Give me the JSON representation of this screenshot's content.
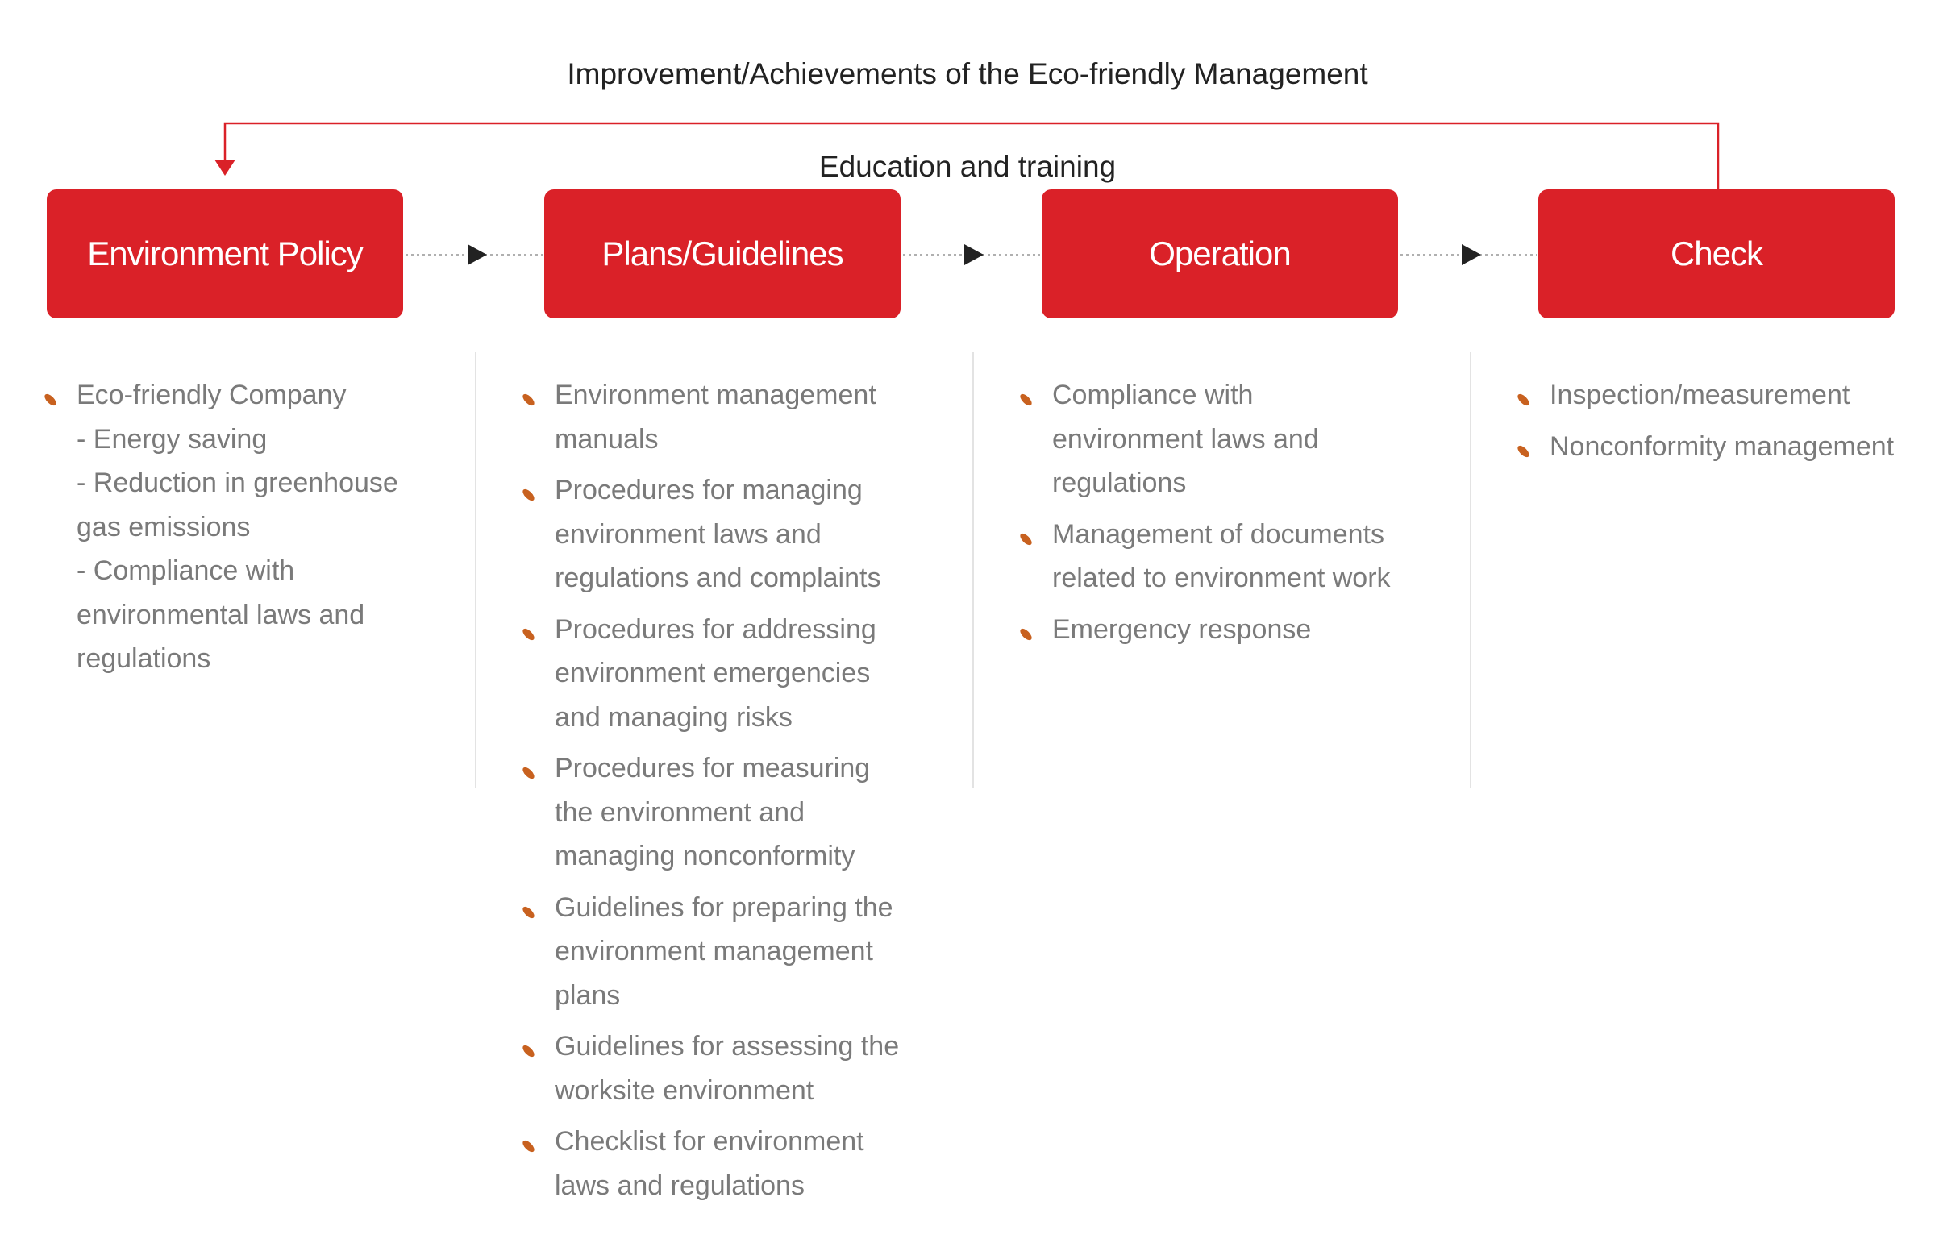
{
  "diagram": {
    "title": "Improvement/Achievements of the Eco-friendly Management",
    "subtitle": "Education and training",
    "colors": {
      "stage": "#da2128",
      "bullet": "#c8611f",
      "text": "#7a7a7a",
      "feedback_line": "#da2128",
      "arrow": "#222222"
    },
    "stages": [
      {
        "label": "Environment Policy"
      },
      {
        "label": "Plans/Guidelines"
      },
      {
        "label": "Operation"
      },
      {
        "label": "Check"
      }
    ],
    "columns": [
      {
        "items": [
          {
            "text": "Eco-friendly Company",
            "sub": [
              "- Energy saving",
              "- Reduction in greenhouse gas emissions",
              "- Compliance with environmental laws and regulations"
            ]
          }
        ]
      },
      {
        "items": [
          {
            "text": "Environment management manuals"
          },
          {
            "text": "Procedures for managing environment laws and regulations and complaints"
          },
          {
            "text": "Procedures for addressing environment emergencies and managing risks"
          },
          {
            "text": "Procedures for measuring the environment and managing nonconformity"
          },
          {
            "text": "Guidelines for preparing the environment management plans"
          },
          {
            "text": "Guidelines for assessing the worksite environment"
          },
          {
            "text": "Checklist for environment laws and regulations"
          }
        ]
      },
      {
        "items": [
          {
            "text": "Compliance with environment laws and regulations"
          },
          {
            "text": "Management of documents related to environment work"
          },
          {
            "text": "Emergency response"
          }
        ]
      },
      {
        "items": [
          {
            "text": "Inspection/measurement"
          },
          {
            "text": "Nonconformity management"
          }
        ]
      }
    ]
  }
}
